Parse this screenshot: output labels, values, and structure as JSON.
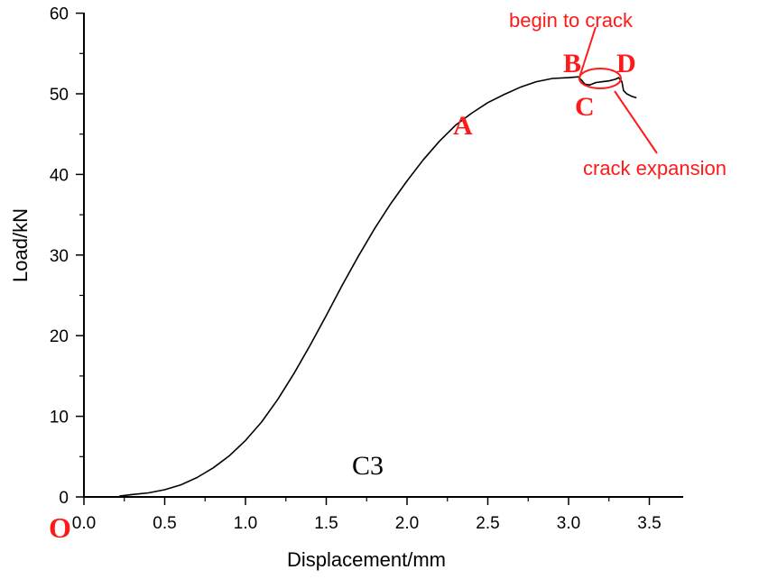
{
  "chart_data": {
    "type": "line",
    "title": "",
    "xlabel": "Displacement/mm",
    "ylabel": "Load/kN",
    "xlim": [
      0,
      3.7
    ],
    "ylim": [
      0,
      60
    ],
    "xticks": [
      "0.0",
      "0.5",
      "1.0",
      "1.5",
      "2.0",
      "2.5",
      "3.0",
      "3.5"
    ],
    "yticks": [
      "0",
      "10",
      "20",
      "30",
      "40",
      "50",
      "60"
    ],
    "grid": false,
    "legend": "none",
    "panel_label": "C3",
    "origin_label": "O",
    "series": [
      {
        "x": [
          0.22,
          0.3,
          0.4,
          0.5,
          0.6,
          0.7,
          0.8,
          0.9,
          1.0,
          1.1,
          1.2,
          1.3,
          1.4,
          1.5,
          1.6,
          1.7,
          1.8,
          1.9,
          2.0,
          2.1,
          2.2,
          2.3,
          2.4,
          2.5,
          2.6,
          2.7,
          2.8,
          2.9,
          3.0,
          3.06,
          3.08,
          3.1,
          3.13,
          3.17,
          3.21,
          3.25,
          3.29,
          3.31,
          3.33,
          3.34,
          3.36,
          3.39,
          3.42
        ],
        "y": [
          0.1,
          0.3,
          0.5,
          0.9,
          1.5,
          2.4,
          3.6,
          5.1,
          7.0,
          9.3,
          12.1,
          15.3,
          18.8,
          22.5,
          26.3,
          29.9,
          33.3,
          36.4,
          39.2,
          41.8,
          44.1,
          46.1,
          47.6,
          48.9,
          49.9,
          50.8,
          51.5,
          51.9,
          52.0,
          52.1,
          51.7,
          51.2,
          51.1,
          51.4,
          51.5,
          51.6,
          51.8,
          52.0,
          51.5,
          50.4,
          50.0,
          49.7,
          49.5
        ]
      }
    ],
    "annotations": [
      {
        "label": "A",
        "x": 2.42,
        "y": 44.4
      },
      {
        "label": "B",
        "x": 3.05,
        "y": 54.6
      },
      {
        "label": "C",
        "x": 3.13,
        "y": 48.3
      },
      {
        "label": "D",
        "x": 3.38,
        "y": 54.6
      },
      {
        "label": "begin to crack"
      },
      {
        "label": "crack expansion"
      }
    ],
    "colors": {
      "line": "#000000",
      "annotation": "#ff1a1a"
    }
  }
}
